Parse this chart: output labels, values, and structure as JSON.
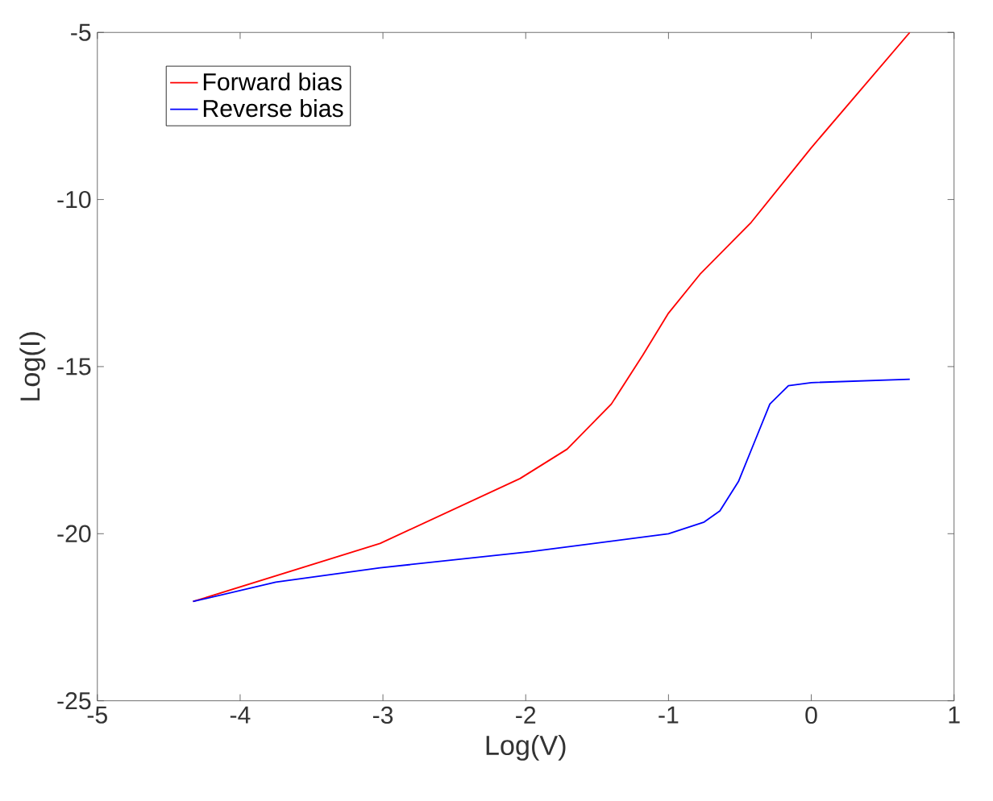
{
  "chart_data": {
    "type": "line",
    "xlabel": "Log(V)",
    "ylabel": "Log(I)",
    "xlim": [
      -5,
      1
    ],
    "ylim": [
      -25,
      -5
    ],
    "xticks": [
      -5,
      -4,
      -3,
      -2,
      -1,
      0,
      1
    ],
    "yticks": [
      -25,
      -20,
      -15,
      -10,
      -5
    ],
    "legend": "top left",
    "grid": false,
    "marker": "none",
    "line_style": "solid",
    "series": [
      {
        "name": "Forward bias",
        "color": "#ff0000",
        "x": [
          -4.33,
          -3.02,
          -2.04,
          -1.71,
          -1.4,
          -1.18,
          -1.0,
          -0.78,
          -0.42,
          0,
          0.33,
          0.69
        ],
        "values": [
          -22.03,
          -20.29,
          -18.35,
          -17.47,
          -16.12,
          -14.66,
          -13.4,
          -12.24,
          -10.68,
          -8.45,
          -6.8,
          -5
        ]
      },
      {
        "name": "Reverse bias",
        "color": "#0000ff",
        "x": [
          -4.33,
          -3.75,
          -3.02,
          -1.97,
          -1.0,
          -0.75,
          -0.64,
          -0.51,
          -0.4,
          -0.29,
          -0.16,
          0,
          0.69
        ],
        "values": [
          -22.03,
          -21.45,
          -21.02,
          -20.54,
          -20.0,
          -19.65,
          -19.32,
          -18.44,
          -17.28,
          -16.12,
          -15.57,
          -15.48,
          -15.38
        ]
      }
    ]
  }
}
